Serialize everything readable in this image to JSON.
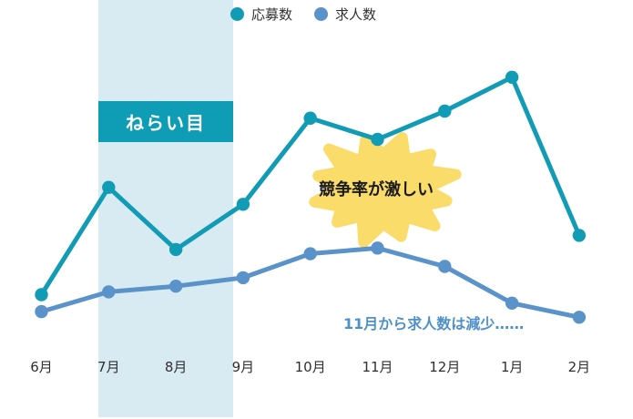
{
  "legend": {
    "position": "top",
    "items": [
      {
        "label": "応募数",
        "color": "#129BB4"
      },
      {
        "label": "求人数",
        "color": "#5A92CA"
      }
    ]
  },
  "highlight": {
    "label": "ねらい目"
  },
  "callouts": {
    "burst_label": "競争率が激しい",
    "note": "11月から求人数は減少……"
  },
  "colors": {
    "band": "#D9EBF2",
    "box": "#0F9DB6",
    "burst": "#F9DC69",
    "note_text": "#4E90C8",
    "applications_line": "#129BB4",
    "openings_line": "#5A92CA"
  },
  "chart_data": {
    "type": "line",
    "title": "",
    "xlabel": "",
    "ylabel": "",
    "unit": "relative scale (no y-axis shown in chart)",
    "ylim": [
      0,
      100
    ],
    "grid": false,
    "legend_position": "top",
    "categories": [
      "6月",
      "7月",
      "8月",
      "9月",
      "10月",
      "11月",
      "12月",
      "1月",
      "2月"
    ],
    "series": [
      {
        "name": "応募数",
        "color": "#129BB4",
        "values": [
          15,
          53,
          31,
          47,
          77.5,
          70,
          80,
          92,
          36
        ]
      },
      {
        "name": "求人数",
        "color": "#5A92CA",
        "values": [
          9,
          16,
          18,
          21,
          29.5,
          31.5,
          25,
          12,
          7
        ]
      }
    ],
    "highlight_band": {
      "from": "7月",
      "to": "8月",
      "label": "ねらい目"
    },
    "annotations": [
      {
        "type": "burst",
        "text": "競争率が激しい",
        "near": "11月"
      },
      {
        "type": "note",
        "text": "11月から求人数は減少……"
      }
    ]
  }
}
